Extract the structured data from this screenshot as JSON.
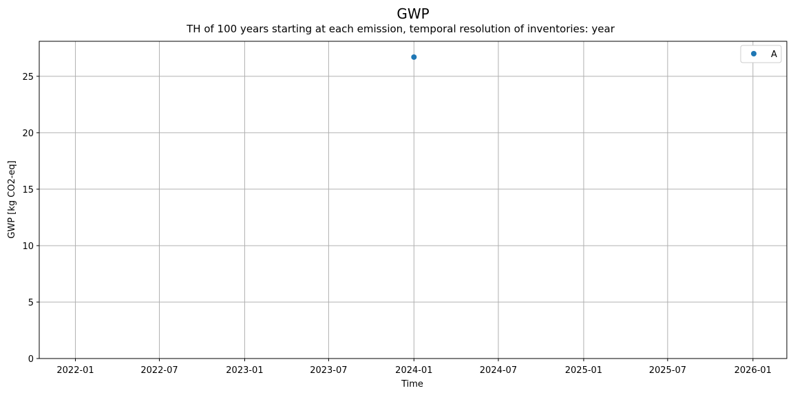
{
  "chart_data": {
    "type": "scatter",
    "title": "GWP",
    "subtitle": "TH of 100 years starting at each emission, temporal resolution of inventories: year",
    "xlabel": "Time",
    "ylabel": "GWP [kg CO2-eq]",
    "x_ticks": [
      "2022-01",
      "2022-07",
      "2023-01",
      "2023-07",
      "2024-01",
      "2024-07",
      "2025-01",
      "2025-07",
      "2026-01"
    ],
    "y_ticks": [
      0,
      5,
      10,
      15,
      20,
      25
    ],
    "xlim": [
      "2021-10-15",
      "2026-03-15"
    ],
    "ylim": [
      0,
      28.1
    ],
    "grid": true,
    "legend_position": "top-right",
    "series": [
      {
        "name": "A",
        "color": "#1f77b4",
        "points": [
          {
            "x": "2024-01-01",
            "y": 26.7
          }
        ]
      }
    ]
  }
}
